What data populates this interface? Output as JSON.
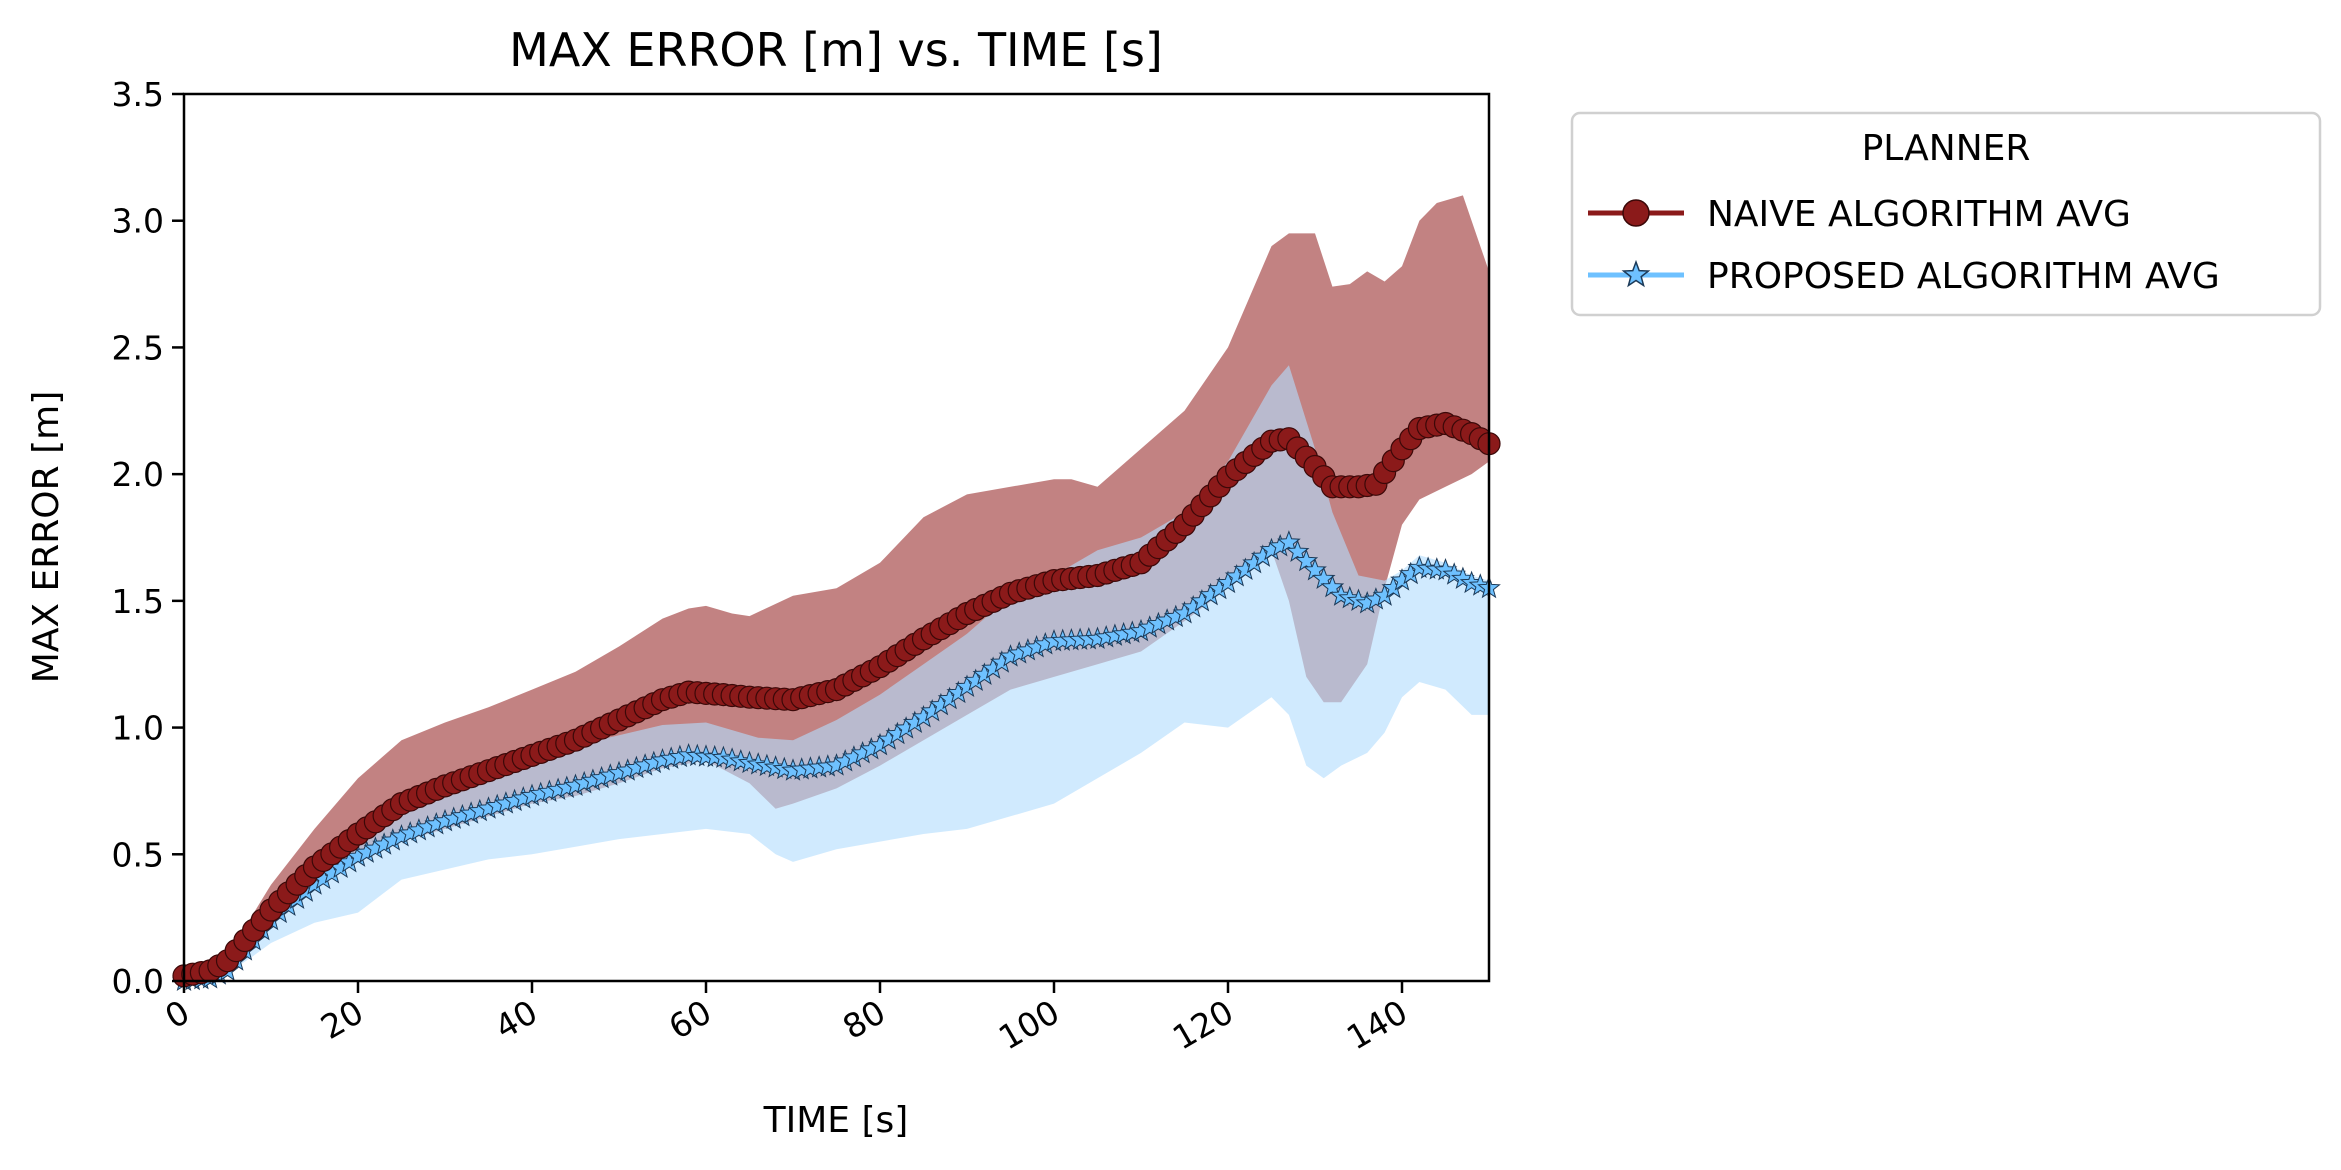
{
  "chart_data": {
    "type": "line",
    "title": "MAX ERROR [m] vs. TIME [s]",
    "xlabel": "TIME [s]",
    "ylabel": "MAX ERROR [m]",
    "xlim": [
      0,
      150
    ],
    "ylim": [
      0,
      3.5
    ],
    "xticks": [
      0,
      20,
      40,
      60,
      80,
      100,
      120,
      140
    ],
    "xtick_labels": [
      "0",
      "20",
      "40",
      "60",
      "80",
      "100",
      "120",
      "140"
    ],
    "yticks": [
      0,
      0.5,
      1,
      1.5,
      2,
      2.5,
      3,
      3.5
    ],
    "ytick_labels": [
      "0.0",
      "0.5",
      "1.0",
      "1.5",
      "2.0",
      "2.5",
      "3.0",
      "3.5"
    ],
    "grid": false,
    "legend": {
      "title": "PLANNER",
      "placement": "outside right, top"
    },
    "series": [
      {
        "name": "NAIVE ALGORITHM AVG",
        "color": "#8b1a1a",
        "marker": "circle",
        "band_color": "#b56767",
        "band_label": "NAIVE ALGORITHM range",
        "avg": [
          [
            0,
            0.02
          ],
          [
            3,
            0.04
          ],
          [
            5,
            0.08
          ],
          [
            7,
            0.16
          ],
          [
            10,
            0.28
          ],
          [
            15,
            0.45
          ],
          [
            20,
            0.58
          ],
          [
            25,
            0.7
          ],
          [
            30,
            0.77
          ],
          [
            35,
            0.83
          ],
          [
            40,
            0.89
          ],
          [
            45,
            0.95
          ],
          [
            50,
            1.03
          ],
          [
            55,
            1.11
          ],
          [
            58,
            1.14
          ],
          [
            62,
            1.13
          ],
          [
            65,
            1.12
          ],
          [
            70,
            1.11
          ],
          [
            75,
            1.15
          ],
          [
            80,
            1.24
          ],
          [
            85,
            1.35
          ],
          [
            90,
            1.45
          ],
          [
            95,
            1.53
          ],
          [
            100,
            1.58
          ],
          [
            105,
            1.6
          ],
          [
            110,
            1.65
          ],
          [
            115,
            1.8
          ],
          [
            120,
            1.99
          ],
          [
            125,
            2.13
          ],
          [
            127,
            2.14
          ],
          [
            130,
            2.03
          ],
          [
            132,
            1.95
          ],
          [
            135,
            1.95
          ],
          [
            137,
            1.96
          ],
          [
            140,
            2.1
          ],
          [
            142,
            2.18
          ],
          [
            145,
            2.2
          ],
          [
            148,
            2.16
          ],
          [
            150,
            2.12
          ]
        ],
        "upper": [
          [
            0,
            0.04
          ],
          [
            5,
            0.1
          ],
          [
            10,
            0.38
          ],
          [
            15,
            0.6
          ],
          [
            20,
            0.8
          ],
          [
            25,
            0.95
          ],
          [
            30,
            1.02
          ],
          [
            35,
            1.08
          ],
          [
            40,
            1.15
          ],
          [
            45,
            1.22
          ],
          [
            50,
            1.32
          ],
          [
            55,
            1.43
          ],
          [
            58,
            1.47
          ],
          [
            60,
            1.48
          ],
          [
            63,
            1.45
          ],
          [
            65,
            1.44
          ],
          [
            70,
            1.52
          ],
          [
            75,
            1.55
          ],
          [
            80,
            1.65
          ],
          [
            85,
            1.83
          ],
          [
            90,
            1.92
          ],
          [
            95,
            1.95
          ],
          [
            100,
            1.98
          ],
          [
            102,
            1.98
          ],
          [
            105,
            1.95
          ],
          [
            110,
            2.1
          ],
          [
            115,
            2.25
          ],
          [
            120,
            2.5
          ],
          [
            125,
            2.9
          ],
          [
            127,
            2.95
          ],
          [
            130,
            2.95
          ],
          [
            132,
            2.74
          ],
          [
            134,
            2.75
          ],
          [
            136,
            2.8
          ],
          [
            138,
            2.76
          ],
          [
            140,
            2.82
          ],
          [
            142,
            3.0
          ],
          [
            144,
            3.07
          ],
          [
            147,
            3.1
          ],
          [
            149,
            2.9
          ],
          [
            150,
            2.8
          ]
        ],
        "lower": [
          [
            0,
            0.0
          ],
          [
            5,
            0.04
          ],
          [
            10,
            0.26
          ],
          [
            15,
            0.36
          ],
          [
            20,
            0.47
          ],
          [
            25,
            0.55
          ],
          [
            30,
            0.6
          ],
          [
            35,
            0.65
          ],
          [
            40,
            0.7
          ],
          [
            45,
            0.73
          ],
          [
            50,
            0.78
          ],
          [
            55,
            0.84
          ],
          [
            60,
            0.87
          ],
          [
            65,
            0.78
          ],
          [
            68,
            0.68
          ],
          [
            70,
            0.7
          ],
          [
            75,
            0.76
          ],
          [
            80,
            0.85
          ],
          [
            85,
            0.95
          ],
          [
            90,
            1.05
          ],
          [
            95,
            1.15
          ],
          [
            100,
            1.2
          ],
          [
            105,
            1.25
          ],
          [
            110,
            1.3
          ],
          [
            115,
            1.42
          ],
          [
            120,
            1.55
          ],
          [
            125,
            1.7
          ],
          [
            127,
            1.5
          ],
          [
            129,
            1.2
          ],
          [
            131,
            1.1
          ],
          [
            133,
            1.1
          ],
          [
            136,
            1.25
          ],
          [
            138,
            1.55
          ],
          [
            140,
            1.8
          ],
          [
            142,
            1.9
          ],
          [
            145,
            1.95
          ],
          [
            148,
            2.0
          ],
          [
            150,
            2.05
          ]
        ]
      },
      {
        "name": "PROPOSED ALGORITHM AVG",
        "color": "#6ec1ff",
        "marker": "star",
        "band_color": "#b3ddfd",
        "band_label": "PROPOSED ALGORITHM range",
        "avg": [
          [
            0,
            0.0
          ],
          [
            3,
            0.01
          ],
          [
            5,
            0.04
          ],
          [
            7,
            0.12
          ],
          [
            10,
            0.24
          ],
          [
            15,
            0.38
          ],
          [
            20,
            0.49
          ],
          [
            25,
            0.57
          ],
          [
            30,
            0.63
          ],
          [
            35,
            0.68
          ],
          [
            40,
            0.73
          ],
          [
            45,
            0.77
          ],
          [
            50,
            0.82
          ],
          [
            55,
            0.87
          ],
          [
            58,
            0.89
          ],
          [
            62,
            0.88
          ],
          [
            65,
            0.86
          ],
          [
            70,
            0.83
          ],
          [
            75,
            0.85
          ],
          [
            80,
            0.93
          ],
          [
            85,
            1.04
          ],
          [
            90,
            1.16
          ],
          [
            95,
            1.28
          ],
          [
            100,
            1.34
          ],
          [
            105,
            1.35
          ],
          [
            110,
            1.38
          ],
          [
            115,
            1.45
          ],
          [
            120,
            1.57
          ],
          [
            125,
            1.7
          ],
          [
            127,
            1.73
          ],
          [
            130,
            1.62
          ],
          [
            133,
            1.52
          ],
          [
            136,
            1.49
          ],
          [
            138,
            1.52
          ],
          [
            140,
            1.58
          ],
          [
            142,
            1.63
          ],
          [
            145,
            1.62
          ],
          [
            148,
            1.57
          ],
          [
            150,
            1.55
          ]
        ],
        "upper": [
          [
            0,
            0.0
          ],
          [
            5,
            0.06
          ],
          [
            10,
            0.3
          ],
          [
            15,
            0.48
          ],
          [
            20,
            0.6
          ],
          [
            25,
            0.7
          ],
          [
            30,
            0.77
          ],
          [
            35,
            0.83
          ],
          [
            40,
            0.88
          ],
          [
            45,
            0.93
          ],
          [
            50,
            0.97
          ],
          [
            55,
            1.01
          ],
          [
            60,
            1.02
          ],
          [
            63,
            0.99
          ],
          [
            66,
            0.96
          ],
          [
            70,
            0.95
          ],
          [
            75,
            1.03
          ],
          [
            80,
            1.13
          ],
          [
            85,
            1.25
          ],
          [
            90,
            1.37
          ],
          [
            95,
            1.52
          ],
          [
            100,
            1.6
          ],
          [
            105,
            1.7
          ],
          [
            110,
            1.75
          ],
          [
            115,
            1.85
          ],
          [
            120,
            2.05
          ],
          [
            125,
            2.35
          ],
          [
            127,
            2.43
          ],
          [
            130,
            2.1
          ],
          [
            132,
            1.85
          ],
          [
            135,
            1.6
          ],
          [
            138,
            1.58
          ],
          [
            140,
            1.62
          ],
          [
            142,
            1.68
          ],
          [
            145,
            1.65
          ],
          [
            148,
            1.6
          ],
          [
            150,
            1.58
          ]
        ],
        "lower": [
          [
            0,
            0.0
          ],
          [
            5,
            0.03
          ],
          [
            8,
            0.1
          ],
          [
            10,
            0.15
          ],
          [
            15,
            0.23
          ],
          [
            20,
            0.27
          ],
          [
            25,
            0.4
          ],
          [
            30,
            0.44
          ],
          [
            35,
            0.48
          ],
          [
            40,
            0.5
          ],
          [
            45,
            0.53
          ],
          [
            50,
            0.56
          ],
          [
            55,
            0.58
          ],
          [
            60,
            0.6
          ],
          [
            65,
            0.58
          ],
          [
            68,
            0.5
          ],
          [
            70,
            0.47
          ],
          [
            75,
            0.52
          ],
          [
            80,
            0.55
          ],
          [
            85,
            0.58
          ],
          [
            90,
            0.6
          ],
          [
            95,
            0.65
          ],
          [
            100,
            0.7
          ],
          [
            105,
            0.8
          ],
          [
            110,
            0.9
          ],
          [
            115,
            1.02
          ],
          [
            120,
            1.0
          ],
          [
            125,
            1.12
          ],
          [
            127,
            1.05
          ],
          [
            129,
            0.85
          ],
          [
            131,
            0.8
          ],
          [
            133,
            0.85
          ],
          [
            136,
            0.9
          ],
          [
            138,
            0.98
          ],
          [
            140,
            1.12
          ],
          [
            142,
            1.18
          ],
          [
            145,
            1.15
          ],
          [
            148,
            1.05
          ],
          [
            150,
            1.05
          ]
        ]
      }
    ]
  }
}
